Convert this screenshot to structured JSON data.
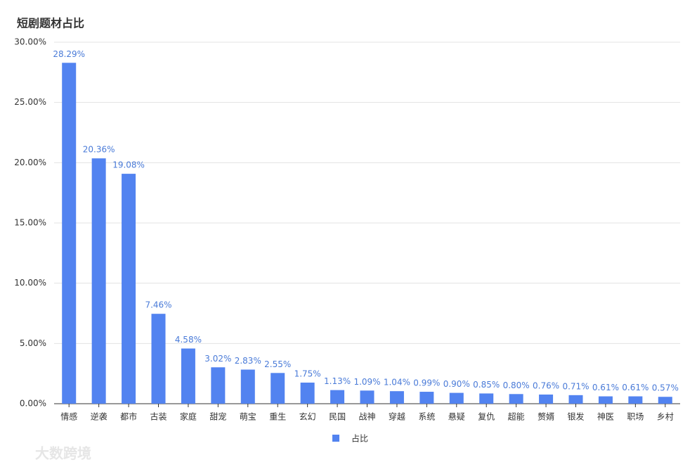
{
  "chart_data": {
    "type": "bar",
    "title": "短剧题材占比",
    "categories": [
      "情感",
      "逆袭",
      "都市",
      "古装",
      "家庭",
      "甜宠",
      "萌宝",
      "重生",
      "玄幻",
      "民国",
      "战神",
      "穿越",
      "系统",
      "悬疑",
      "复仇",
      "超能",
      "赘婿",
      "银发",
      "神医",
      "职场",
      "乡村"
    ],
    "series": [
      {
        "name": "占比",
        "color": "#5283f0",
        "values": [
          28.29,
          20.36,
          19.08,
          7.46,
          4.58,
          3.02,
          2.83,
          2.55,
          1.75,
          1.13,
          1.09,
          1.04,
          0.99,
          0.9,
          0.85,
          0.8,
          0.76,
          0.71,
          0.61,
          0.61,
          0.57
        ],
        "value_labels": [
          "28.29%",
          "20.36%",
          "19.08%",
          "7.46%",
          "4.58%",
          "3.02%",
          "2.83%",
          "2.55%",
          "1.75%",
          "1.13%",
          "1.09%",
          "1.04%",
          "0.99%",
          "0.90%",
          "0.85%",
          "0.80%",
          "0.76%",
          "0.71%",
          "0.61%",
          "0.61%",
          "0.57%"
        ]
      }
    ],
    "ylim": [
      0,
      30
    ],
    "yticks": [
      {
        "value": 0,
        "label": "0.00%"
      },
      {
        "value": 5,
        "label": "5.00%"
      },
      {
        "value": 10,
        "label": "10.00%"
      },
      {
        "value": 15,
        "label": "15.00%"
      },
      {
        "value": 20,
        "label": "20.00%"
      },
      {
        "value": 25,
        "label": "25.00%"
      },
      {
        "value": 30,
        "label": "30.00%"
      }
    ],
    "grid": true,
    "legend": "bottom",
    "watermark": "大数跨境"
  }
}
